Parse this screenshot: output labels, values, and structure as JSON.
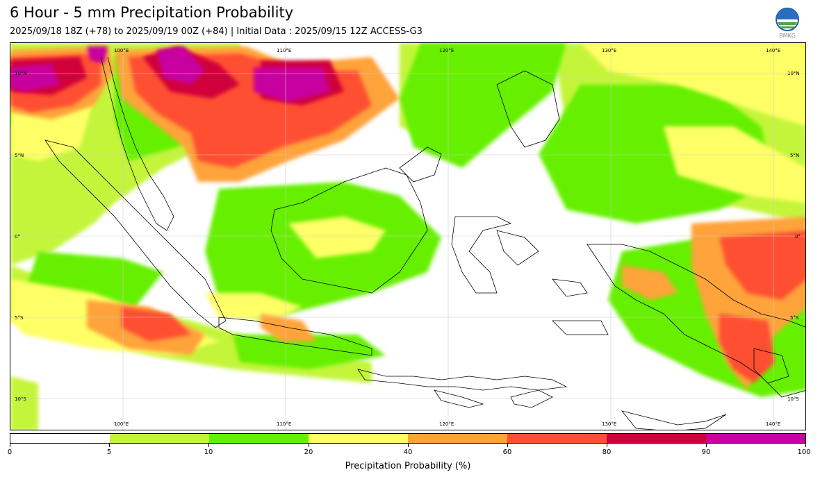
{
  "header": {
    "title": "6 Hour - 5 mm Precipitation Probability",
    "subtitle": "2025/09/18 18Z (+78) to 2025/09/19 00Z (+84) | Initial Data : 2025/09/15 12Z ACCESS-G3"
  },
  "logo": {
    "text": "BMKG",
    "icon": "bmkg-logo"
  },
  "map": {
    "region": "Indonesia / Maritime Continent",
    "lon_range": [
      93,
      142
    ],
    "lat_range": [
      -12,
      12
    ],
    "grid": true,
    "lon_labels_top": [
      "100°E",
      "110°E",
      "120°E",
      "130°E",
      "140°E"
    ],
    "lon_labels_bottom": [
      "100°E",
      "110°E",
      "120°E",
      "130°E",
      "140°E"
    ],
    "lat_labels_left": [
      "10°N",
      "5°N",
      "0°",
      "5°S",
      "10°S"
    ],
    "lat_labels_right": [
      "10°N",
      "5°N",
      "0°",
      "5°S",
      "10°S"
    ]
  },
  "colorbar": {
    "title": "Precipitation Probability (%)",
    "tick_labels": [
      "0",
      "5",
      "10",
      "20",
      "40",
      "60",
      "80",
      "90",
      "100"
    ],
    "colors": [
      "#ffffff",
      "#c4f53a",
      "#66f000",
      "#ffff66",
      "#ffa33a",
      "#ff5033",
      "#d0003a",
      "#c8009f"
    ]
  }
}
